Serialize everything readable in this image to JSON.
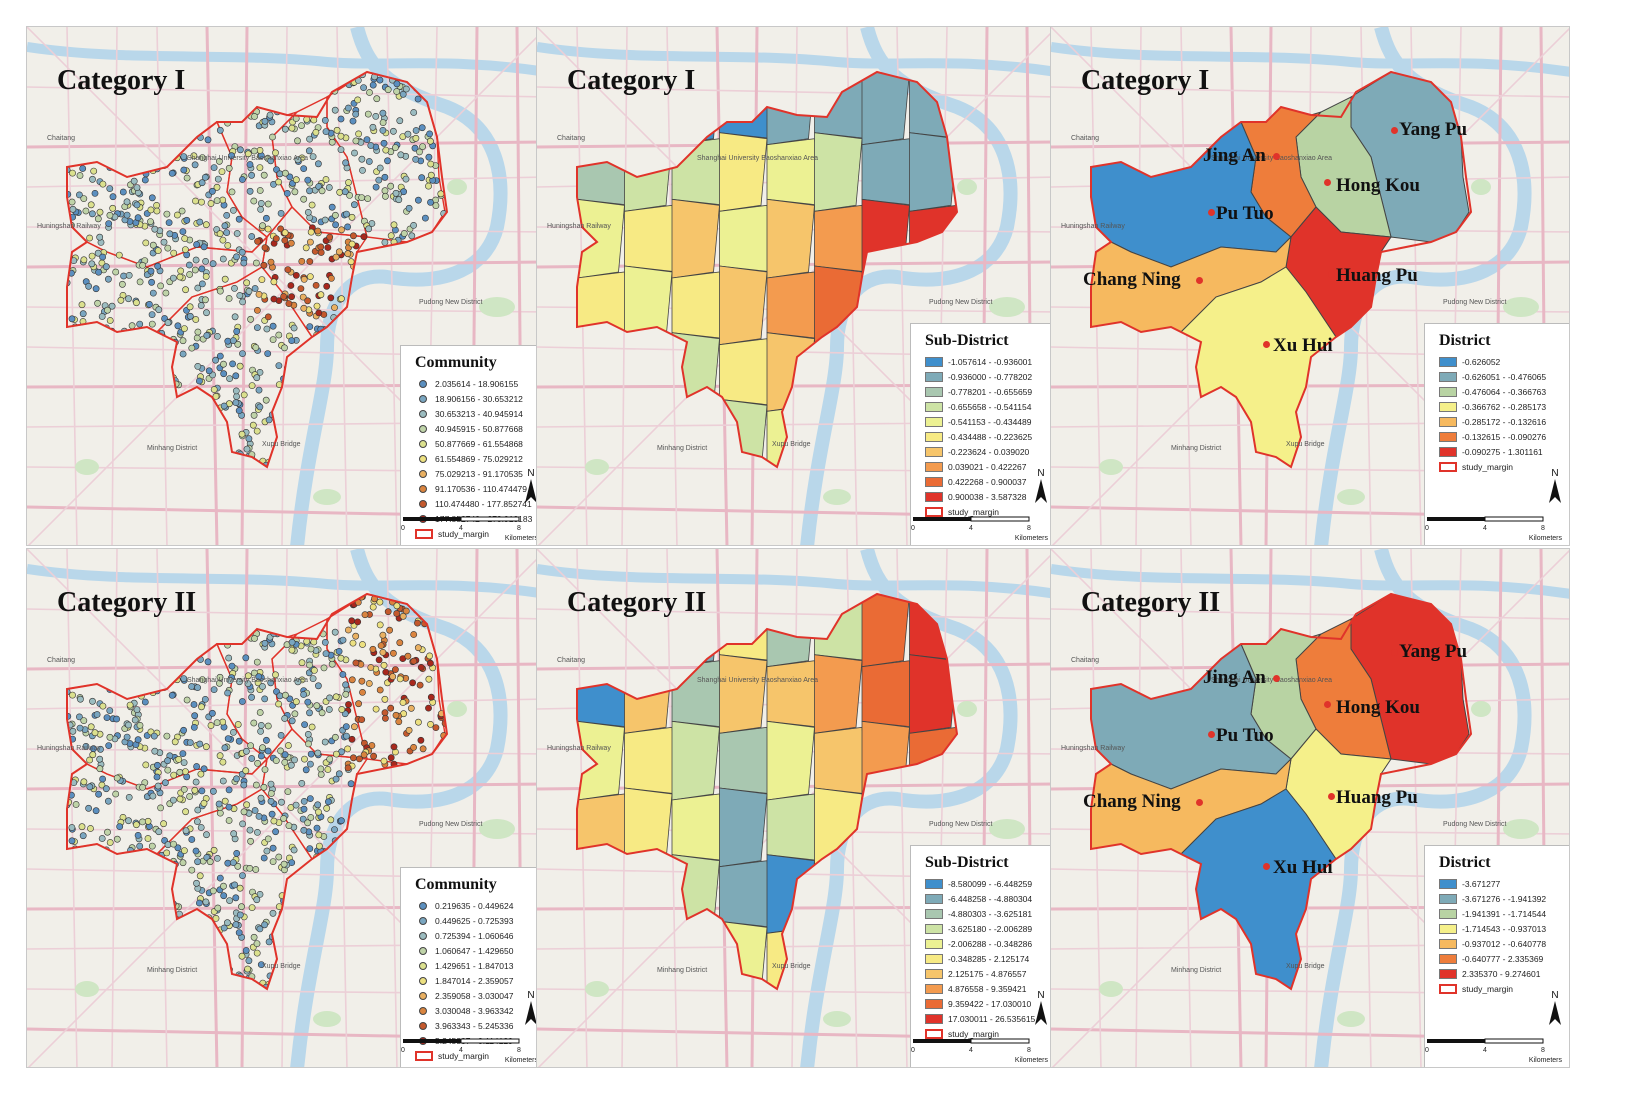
{
  "panels": [
    {
      "id": "cat1-community",
      "title": "Category I",
      "kind": "points",
      "legend": {
        "title": "Community",
        "items": [
          {
            "label": "2.035614 - 18.906155",
            "color": "#5b8fbf"
          },
          {
            "label": "18.906156 - 30.653212",
            "color": "#7aa6c0"
          },
          {
            "label": "30.653213 - 40.945914",
            "color": "#9bbcc0"
          },
          {
            "label": "40.945915 - 50.877668",
            "color": "#bfd3a8"
          },
          {
            "label": "50.877669 - 61.554868",
            "color": "#dbe08e"
          },
          {
            "label": "61.554869 - 75.029212",
            "color": "#ece080"
          },
          {
            "label": "75.029213 - 91.170535",
            "color": "#e9b062"
          },
          {
            "label": "91.170536 - 110.474479",
            "color": "#d9843f"
          },
          {
            "label": "110.474480 - 177.852741",
            "color": "#c4592d"
          },
          {
            "label": "177.852742 - 273.913183",
            "color": "#a8281d"
          }
        ],
        "margin_label": "study_margin"
      }
    },
    {
      "id": "cat1-subdistrict",
      "title": "Category I",
      "kind": "subdistrict",
      "legend": {
        "title": "Sub-District",
        "items": [
          {
            "label": "-1.057614 - -0.936001",
            "color": "#3f8fcc"
          },
          {
            "label": "-0.936000 - -0.778202",
            "color": "#7eaab7"
          },
          {
            "label": "-0.778201 - -0.655659",
            "color": "#a9c7b0"
          },
          {
            "label": "-0.655658 - -0.541154",
            "color": "#cde3a5"
          },
          {
            "label": "-0.541153 - -0.434489",
            "color": "#ecf193"
          },
          {
            "label": "-0.434488 - -0.223625",
            "color": "#f7ea84"
          },
          {
            "label": "-0.223624 - 0.039020",
            "color": "#f6c56b"
          },
          {
            "label": "0.039021 - 0.422267",
            "color": "#f39b4f"
          },
          {
            "label": "0.422268 - 0.900037",
            "color": "#ea6b35"
          },
          {
            "label": "0.900038 - 3.587328",
            "color": "#e0332a"
          }
        ],
        "margin_label": "study_margin"
      }
    },
    {
      "id": "cat1-district",
      "title": "Category I",
      "kind": "district",
      "legend": {
        "title": "District",
        "items": [
          {
            "label": "-0.626052",
            "color": "#3f8fcc"
          },
          {
            "label": "-0.626051 - -0.476065",
            "color": "#7eaab7"
          },
          {
            "label": "-0.476064 - -0.366763",
            "color": "#b8d3a3"
          },
          {
            "label": "-0.366762 - -0.285173",
            "color": "#f5f08a"
          },
          {
            "label": "-0.285172 - -0.132616",
            "color": "#f6b95f"
          },
          {
            "label": "-0.132615 - -0.090276",
            "color": "#ee7d3b"
          },
          {
            "label": "-0.090275 - 1.301161",
            "color": "#e0332a"
          }
        ],
        "margin_label": "study_margin"
      },
      "districts": {
        "yang_pu": {
          "name": "Yang Pu",
          "color": "#7eaab7"
        },
        "jing_an": {
          "name": "Jing An",
          "color": "#ee7d3b"
        },
        "hong_kou": {
          "name": "Hong Kou",
          "color": "#b8d3a3"
        },
        "pu_tuo": {
          "name": "Pu Tuo",
          "color": "#3f8fcc"
        },
        "chang_ning": {
          "name": "Chang Ning",
          "color": "#f6b95f"
        },
        "huang_pu": {
          "name": "Huang Pu",
          "color": "#e0332a"
        },
        "xu_hui": {
          "name": "Xu Hui",
          "color": "#f5f08a"
        }
      }
    },
    {
      "id": "cat2-community",
      "title": "Category II",
      "kind": "points",
      "legend": {
        "title": "Community",
        "items": [
          {
            "label": "0.219635 - 0.449624",
            "color": "#5b8fbf"
          },
          {
            "label": "0.449625 - 0.725393",
            "color": "#7aa6c0"
          },
          {
            "label": "0.725394 - 1.060646",
            "color": "#9bbcc0"
          },
          {
            "label": "1.060647 - 1.429650",
            "color": "#bfd3a8"
          },
          {
            "label": "1.429651 - 1.847013",
            "color": "#dbe08e"
          },
          {
            "label": "1.847014 - 2.359057",
            "color": "#ece080"
          },
          {
            "label": "2.359058 - 3.030047",
            "color": "#e9b062"
          },
          {
            "label": "3.030048 - 3.963342",
            "color": "#d9843f"
          },
          {
            "label": "3.963343 - 5.245336",
            "color": "#c4592d"
          },
          {
            "label": "5.245337 - 8.114129",
            "color": "#a8281d"
          }
        ],
        "margin_label": "study_margin"
      }
    },
    {
      "id": "cat2-subdistrict",
      "title": "Category II",
      "kind": "subdistrict",
      "legend": {
        "title": "Sub-District",
        "items": [
          {
            "label": "-8.580099 - -6.448259",
            "color": "#3f8fcc"
          },
          {
            "label": "-6.448258 - -4.880304",
            "color": "#7eaab7"
          },
          {
            "label": "-4.880303 - -3.625181",
            "color": "#a9c7b0"
          },
          {
            "label": "-3.625180 - -2.006289",
            "color": "#cde3a5"
          },
          {
            "label": "-2.006288 - -0.348286",
            "color": "#ecf193"
          },
          {
            "label": "-0.348285 - 2.125174",
            "color": "#f7ea84"
          },
          {
            "label": "2.125175 - 4.876557",
            "color": "#f6c56b"
          },
          {
            "label": "4.876558 - 9.359421",
            "color": "#f39b4f"
          },
          {
            "label": "9.359422 - 17.030010",
            "color": "#ea6b35"
          },
          {
            "label": "17.030011 - 26.535615",
            "color": "#e0332a"
          }
        ],
        "margin_label": "study_margin"
      }
    },
    {
      "id": "cat2-district",
      "title": "Category II",
      "kind": "district",
      "legend": {
        "title": "District",
        "items": [
          {
            "label": "-3.671277",
            "color": "#3f8fcc"
          },
          {
            "label": "-3.671276 - -1.941392",
            "color": "#7eaab7"
          },
          {
            "label": "-1.941391 - -1.714544",
            "color": "#b8d3a3"
          },
          {
            "label": "-1.714543 - -0.937013",
            "color": "#f5f08a"
          },
          {
            "label": "-0.937012 - -0.640778",
            "color": "#f6b95f"
          },
          {
            "label": "-0.640777 - 2.335369",
            "color": "#ee7d3b"
          },
          {
            "label": "2.335370 - 9.274601",
            "color": "#e0332a"
          }
        ],
        "margin_label": "study_margin"
      },
      "districts": {
        "yang_pu": {
          "name": "Yang Pu",
          "color": "#e0332a"
        },
        "jing_an": {
          "name": "Jing An",
          "color": "#b8d3a3"
        },
        "hong_kou": {
          "name": "Hong Kou",
          "color": "#ee7d3b"
        },
        "pu_tuo": {
          "name": "Pu Tuo",
          "color": "#7eaab7"
        },
        "chang_ning": {
          "name": "Chang Ning",
          "color": "#f6b95f"
        },
        "huang_pu": {
          "name": "Huang Pu",
          "color": "#f5f08a"
        },
        "xu_hui": {
          "name": "Xu Hui",
          "color": "#3f8fcc"
        }
      }
    }
  ],
  "scale": {
    "ticks": [
      "0",
      "4",
      "8"
    ],
    "unit": "Kilometers",
    "north": "N"
  },
  "basemap_labels": {
    "pudong": "Pudong New District",
    "minhang": "Minhang District",
    "xuhui_bridge": "Xupu Bridge",
    "shanghai_univ": "Shanghai University Baoshanxiao Area",
    "huning": "Huningshan Railway",
    "chaitang": "Chaitang"
  }
}
